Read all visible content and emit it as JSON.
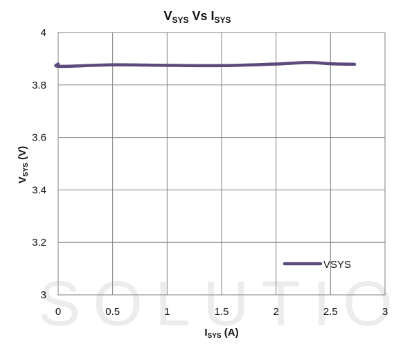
{
  "chart_data": {
    "type": "line",
    "title": {
      "main": "V",
      "main_sub": "SYS",
      "mid": " Vs  I",
      "mid_sub": "SYS"
    },
    "ylabel": {
      "main": "V",
      "sub": "SYS",
      "tail": " (V)"
    },
    "xlabel": {
      "main": "I",
      "sub": "SYS",
      "tail": " (A)"
    },
    "xlim": [
      0,
      3
    ],
    "ylim": [
      3,
      4
    ],
    "xticks": [
      0,
      0.5,
      1,
      1.5,
      2,
      2.5,
      3
    ],
    "yticks": [
      3,
      3.2,
      3.4,
      3.6,
      3.8,
      4
    ],
    "grid": true,
    "legend_position": "bottom-right",
    "series": [
      {
        "name": "VSYS",
        "color": "#5b4a7a",
        "x": [
          0,
          0.02,
          0.5,
          1.0,
          1.5,
          2.0,
          2.3,
          2.5,
          2.72
        ],
        "y": [
          3.88,
          3.871,
          3.877,
          3.875,
          3.874,
          3.88,
          3.886,
          3.881,
          3.879
        ]
      }
    ]
  }
}
